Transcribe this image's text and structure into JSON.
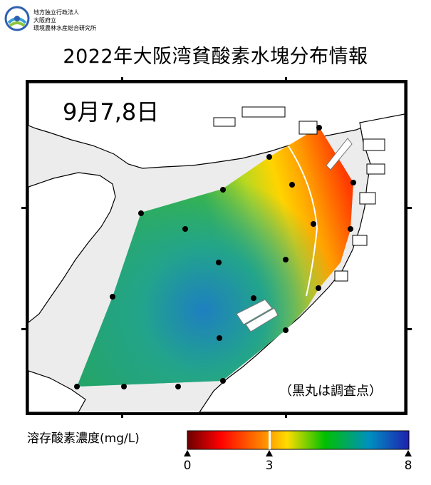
{
  "header": {
    "org_lines": [
      "地方独立行政法人",
      "大阪府立",
      "環境農林水産総合研究所"
    ]
  },
  "title": "2022年大阪湾貧酸素水塊分布情報",
  "map": {
    "date_label": "9月7,8日",
    "legend_note": "（黒丸は調査点）",
    "colors": {
      "land": "#ffffff",
      "sea": "#ececec",
      "outline": "#000000",
      "station": "#000000"
    }
  },
  "colorbar": {
    "title": "溶存酸素濃度(mg/L)",
    "ticks": [
      "0",
      "3",
      "8"
    ],
    "gradient": [
      "#6b0000",
      "#ff0000",
      "#ff8000",
      "#ffff00",
      "#00c000",
      "#0090c0",
      "#1020a0"
    ]
  }
}
